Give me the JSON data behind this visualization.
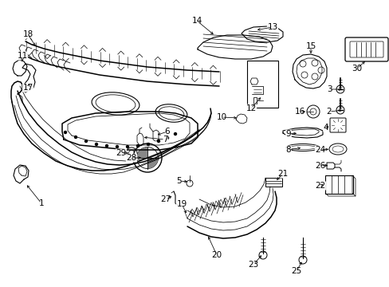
{
  "bg_color": "#ffffff",
  "line_color": "#000000",
  "fig_width": 4.89,
  "fig_height": 3.6,
  "dpi": 100,
  "fontsize": 7.5
}
